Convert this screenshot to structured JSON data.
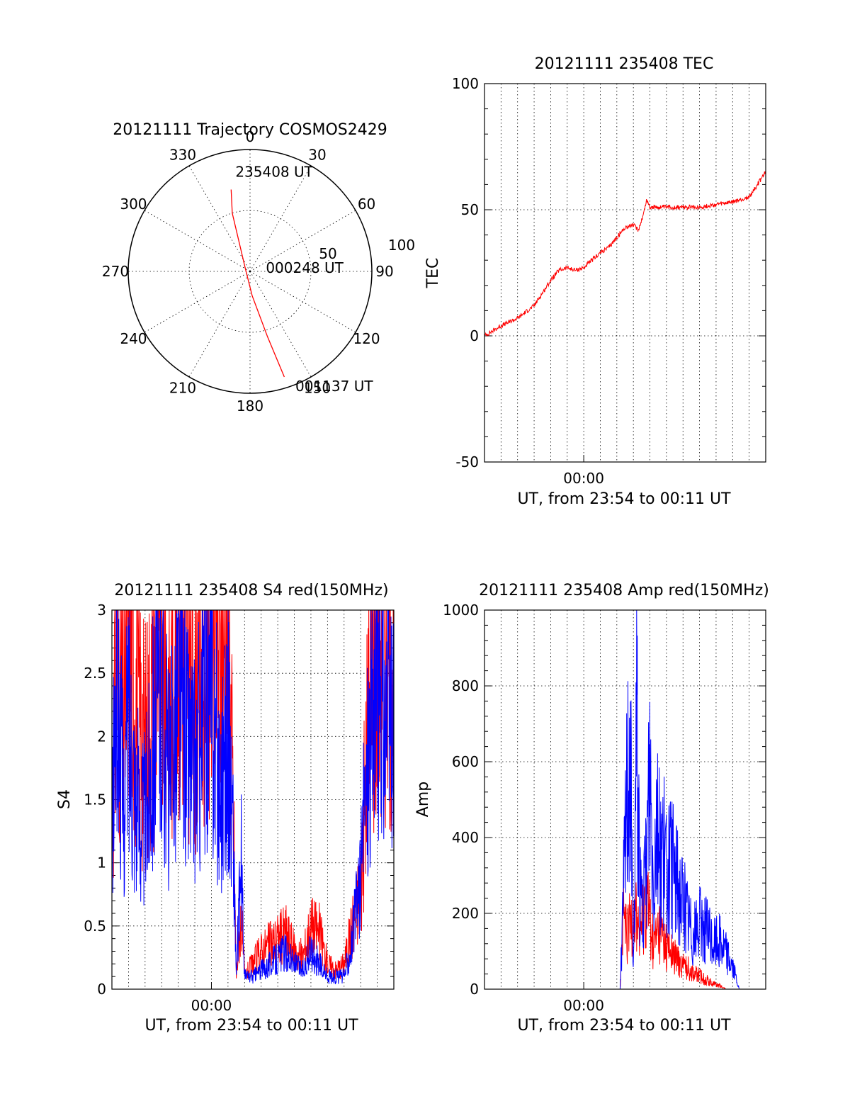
{
  "colors": {
    "red": "#ff0000",
    "blue": "#0000ff",
    "axis": "#000000"
  },
  "chart_data": [
    {
      "id": "trajectory",
      "type": "polar",
      "title": "20121111 Trajectory COSMOS2429",
      "angle_labels": [
        "0",
        "30",
        "60",
        "90",
        "120",
        "150",
        "180",
        "210",
        "240",
        "270",
        "300",
        "330"
      ],
      "radius_labels": [
        "50",
        "100"
      ],
      "rlim": [
        0,
        100
      ],
      "grid": true,
      "series": [
        {
          "color": "#ff0000",
          "points": [
            {
              "az": 347,
              "el": 28
            },
            {
              "az": 343,
              "el": 45
            },
            {
              "az": 300,
              "el": 86
            },
            {
              "az": 175,
              "el": 72
            },
            {
              "az": 165,
              "el": 40
            },
            {
              "az": 162,
              "el": 8
            }
          ]
        }
      ],
      "annotations": [
        {
          "text": "235408 UT",
          "az": 350,
          "el": 18
        },
        {
          "text": "000248 UT",
          "az": 90,
          "el": 80
        },
        {
          "text": "001137 UT",
          "az": 160,
          "el": -3
        }
      ]
    },
    {
      "id": "tec",
      "type": "line",
      "title": "20121111 235408 TEC",
      "xlabel": "UT, from 23:54 to 00:11 UT",
      "ylabel": "TEC",
      "xlim": [
        -6,
        11
      ],
      "ylim": [
        -50,
        100
      ],
      "yticks": [
        "-50",
        "0",
        "50",
        "100"
      ],
      "xticks": [
        {
          "at": 0,
          "label": "00:00"
        }
      ],
      "grid": true,
      "series": [
        {
          "color": "#ff0000",
          "x": [
            -6,
            -5,
            -4,
            -3,
            -2.5,
            -2,
            -1.5,
            -1,
            -0.5,
            0,
            0.5,
            1,
            1.5,
            2,
            2.5,
            3,
            3.3,
            3.6,
            3.8,
            4,
            4.5,
            5,
            6,
            7,
            8,
            9,
            10,
            10.5,
            11
          ],
          "y": [
            0,
            4,
            7,
            12,
            17,
            22,
            26,
            27,
            26,
            27,
            30,
            33,
            35,
            39,
            43,
            44,
            42,
            48,
            54,
            51,
            51,
            51,
            51,
            51,
            52,
            53,
            55,
            60,
            65
          ]
        }
      ]
    },
    {
      "id": "s4",
      "type": "line",
      "title": "20121111 235408 S4 red(150MHz)",
      "xlabel": "UT, from 23:54 to 00:11 UT",
      "ylabel": "S4",
      "xlim": [
        -6,
        11
      ],
      "ylim": [
        0,
        3
      ],
      "yticks": [
        "0",
        "0.5",
        "1",
        "1.5",
        "2",
        "2.5",
        "3"
      ],
      "xticks": [
        {
          "at": 0,
          "label": "00:00"
        }
      ],
      "grid": true,
      "series": [
        {
          "color": "#ff0000",
          "x": [
            -6,
            -5.7,
            -5.3,
            -5,
            -4.5,
            -4,
            -3.5,
            -3,
            -2.5,
            -2,
            -1.5,
            -1,
            -0.5,
            0,
            0.5,
            1,
            1.3,
            1.5,
            1.8,
            2,
            2.5,
            3,
            3.5,
            4,
            4.5,
            5,
            5.5,
            6,
            6.5,
            7,
            7.5,
            8,
            8.5,
            9,
            9.5,
            10,
            10.5,
            11
          ],
          "y": [
            1.5,
            2.6,
            2.2,
            2.9,
            2.3,
            1.9,
            2.4,
            2.8,
            2.2,
            2.9,
            2.6,
            2.3,
            2.8,
            2.9,
            2.7,
            2.9,
            1.5,
            0.1,
            0.6,
            0.1,
            0.2,
            0.3,
            0.35,
            0.4,
            0.45,
            0.3,
            0.25,
            0.5,
            0.45,
            0.2,
            0.15,
            0.2,
            0.5,
            0.8,
            2.2,
            2.9,
            2.8,
            2.7
          ]
        },
        {
          "color": "#0000ff",
          "x": [
            -6,
            -5.7,
            -5.3,
            -5,
            -4.5,
            -4,
            -3.5,
            -3,
            -2.5,
            -2,
            -1.5,
            -1,
            -0.5,
            0,
            0.5,
            1,
            1.3,
            1.5,
            1.8,
            2,
            2.5,
            3,
            3.5,
            4,
            4.5,
            5,
            5.5,
            6,
            6.5,
            7,
            7.5,
            8,
            8.5,
            9,
            9.5,
            10,
            10.5,
            11
          ],
          "y": [
            1.2,
            2.5,
            1.4,
            2.2,
            1.5,
            1.3,
            2.1,
            2.3,
            1.6,
            2.5,
            2.0,
            1.7,
            2.2,
            2.4,
            1.6,
            2.0,
            1.3,
            0.1,
            1.0,
            0.1,
            0.1,
            0.15,
            0.2,
            0.25,
            0.3,
            0.2,
            0.15,
            0.3,
            0.2,
            0.1,
            0.1,
            0.1,
            0.4,
            0.9,
            2.0,
            2.5,
            2.2,
            2.0
          ]
        }
      ]
    },
    {
      "id": "amp",
      "type": "line",
      "title": "20121111 235408 Amp red(150MHz)",
      "xlabel": "UT, from 23:54 to 00:11 UT",
      "ylabel": "Amp",
      "xlim": [
        -6,
        11
      ],
      "ylim": [
        0,
        1000
      ],
      "yticks": [
        "0",
        "200",
        "400",
        "600",
        "800",
        "1000"
      ],
      "xticks": [
        {
          "at": 0,
          "label": "00:00"
        }
      ],
      "grid": true,
      "series": [
        {
          "color": "#ff0000",
          "x": [
            -6,
            -2,
            2.2,
            2.4,
            2.6,
            3,
            3.4,
            3.8,
            4.2,
            4.6,
            5,
            5.4,
            5.8,
            6.2,
            6.6,
            7,
            7.4,
            7.8,
            8.2,
            8.6,
            9,
            11
          ],
          "y": [
            0,
            0,
            0,
            200,
            130,
            220,
            150,
            250,
            120,
            160,
            110,
            90,
            70,
            60,
            45,
            35,
            25,
            15,
            10,
            0,
            0,
            0
          ]
        },
        {
          "color": "#0000ff",
          "x": [
            -6,
            -2,
            2.2,
            2.4,
            2.6,
            2.8,
            3,
            3.2,
            3.4,
            3.6,
            3.8,
            4,
            4.2,
            4.4,
            4.6,
            4.8,
            5,
            5.4,
            5.8,
            6.2,
            6.6,
            7,
            7.4,
            7.8,
            8.2,
            8.6,
            9,
            9.4,
            11
          ],
          "y": [
            0,
            0,
            0,
            250,
            500,
            700,
            30,
            755,
            250,
            200,
            350,
            600,
            280,
            480,
            350,
            380,
            300,
            320,
            260,
            200,
            140,
            170,
            160,
            120,
            130,
            100,
            60,
            0,
            0
          ]
        }
      ]
    }
  ]
}
